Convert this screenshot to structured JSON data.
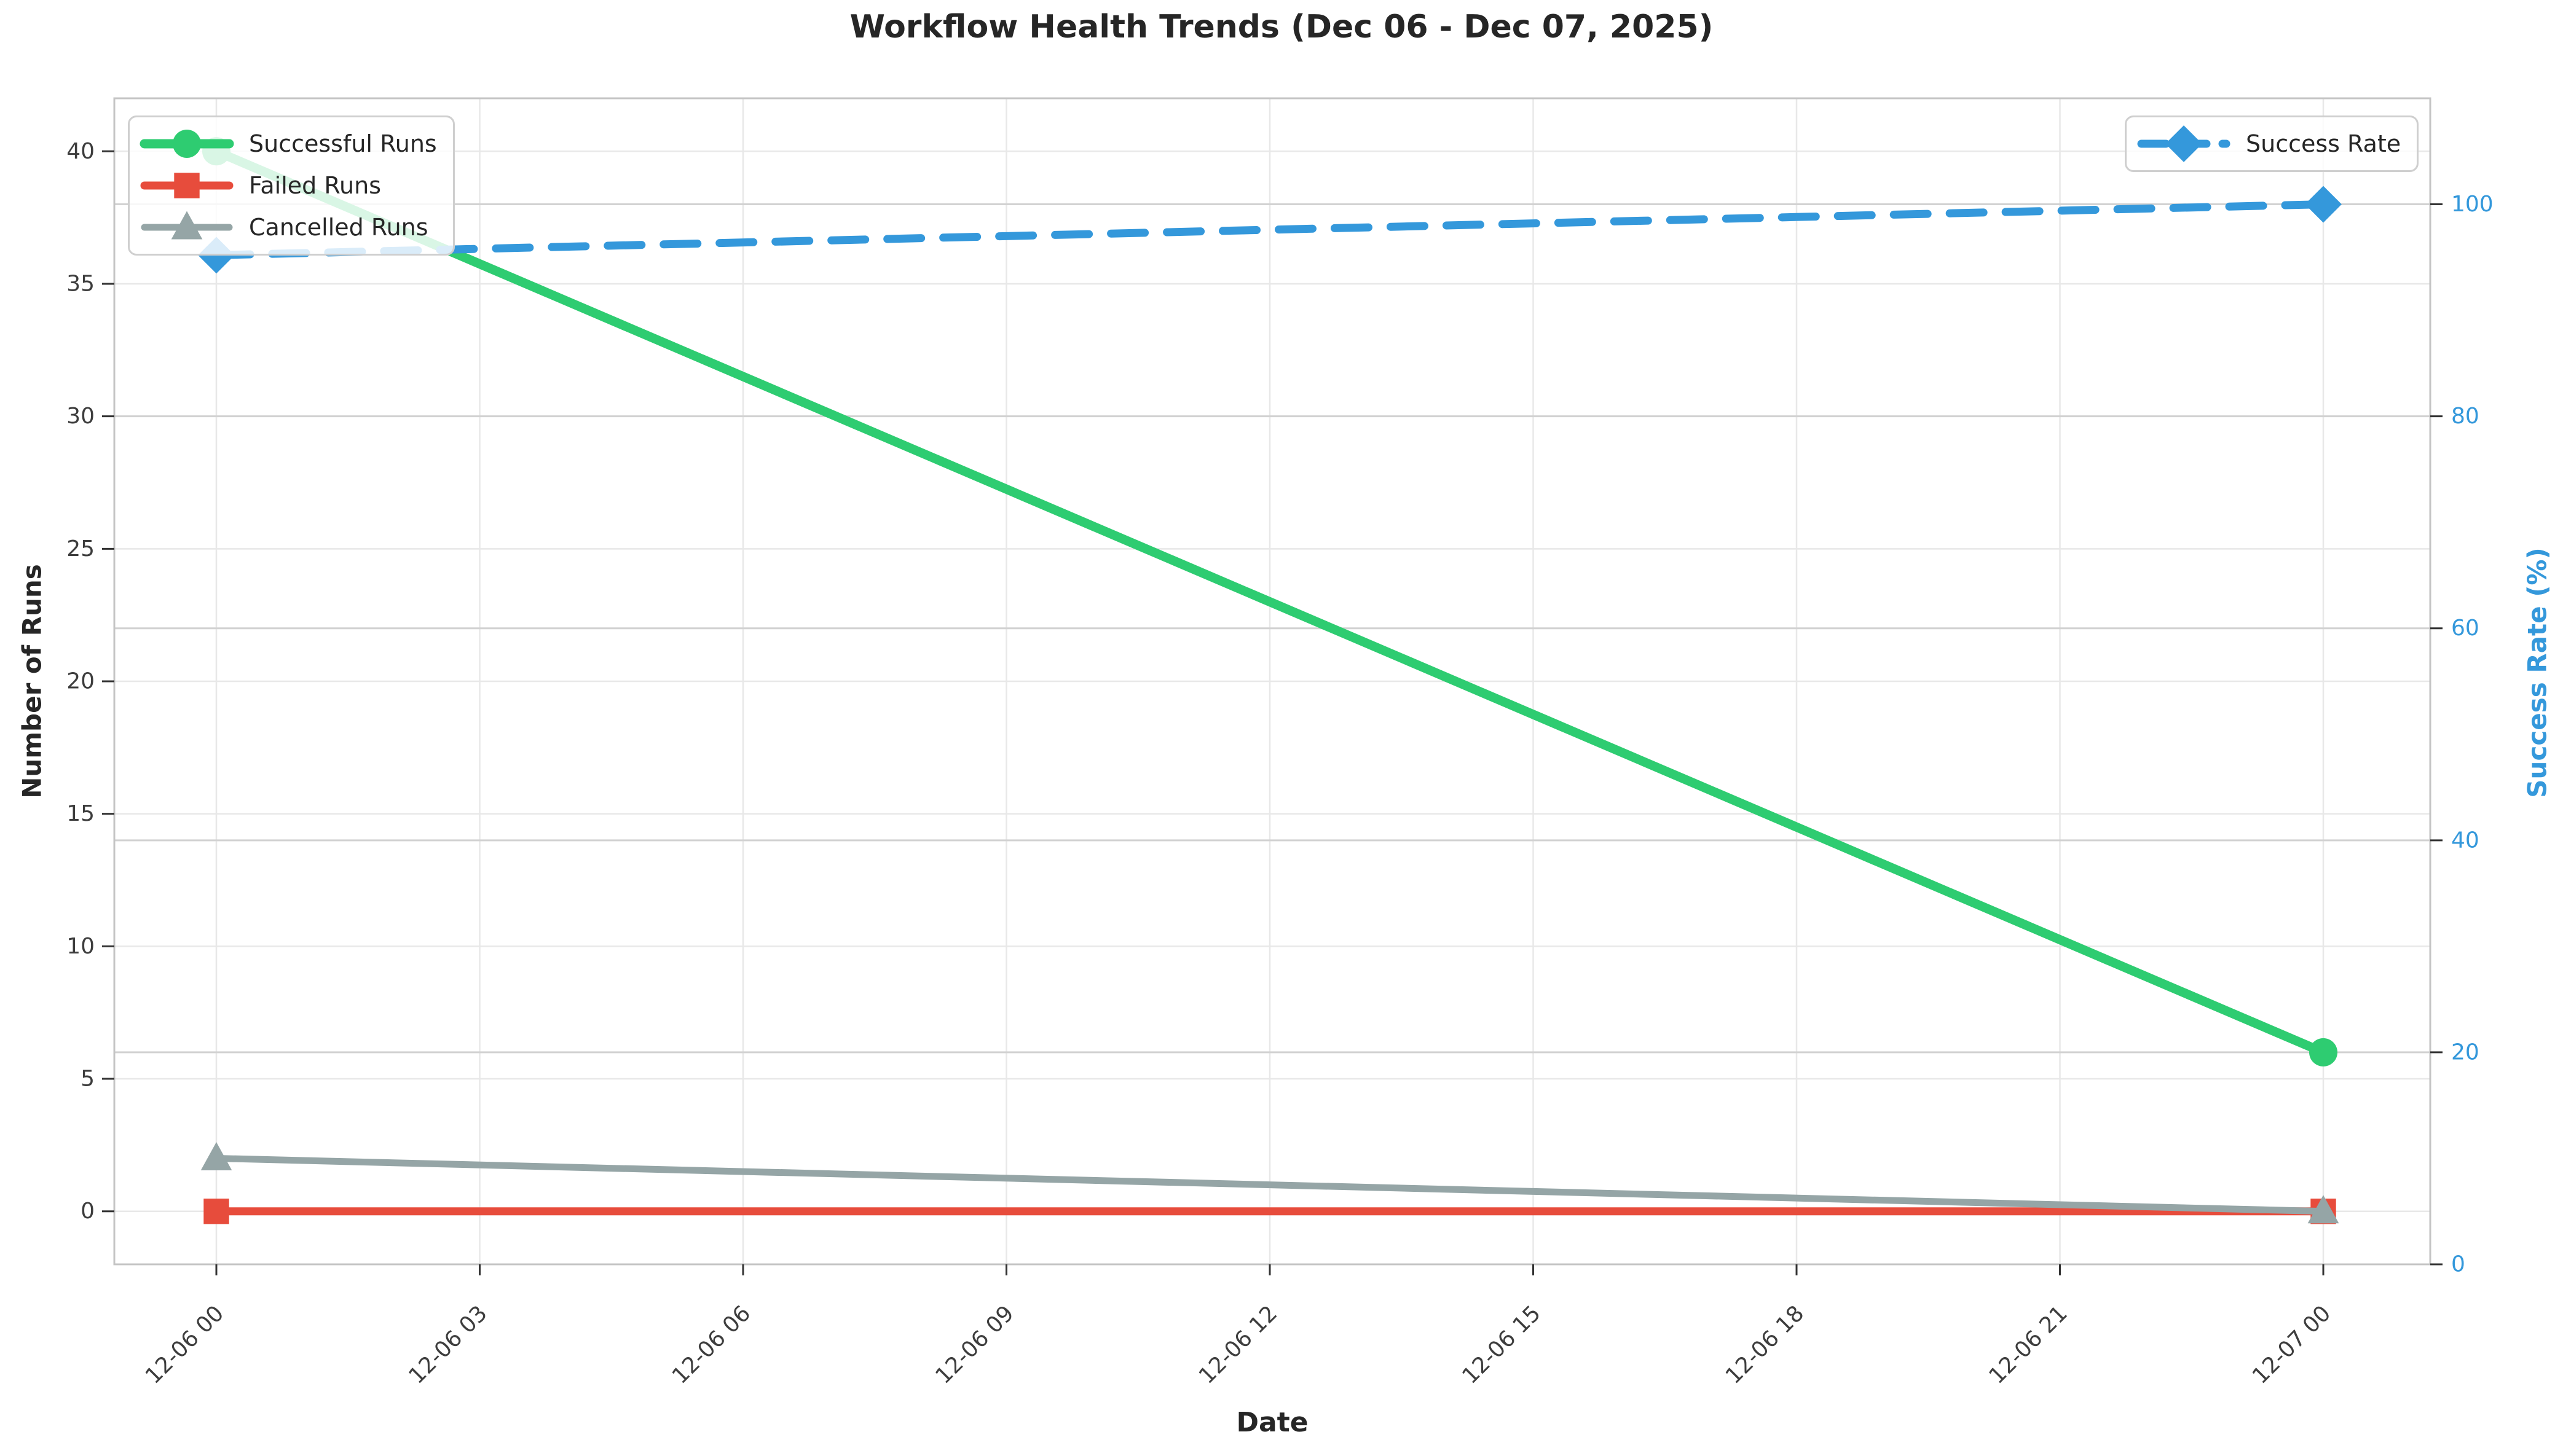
{
  "chart_data": {
    "type": "line",
    "title": "Workflow Health Trends (Dec 06 - Dec 07, 2025)",
    "xlabel": "Date",
    "ylabel_left": "Number of Runs",
    "ylabel_right": "Success Rate (%)",
    "x_tick_labels": [
      "12-06 00",
      "12-06 03",
      "12-06 06",
      "12-06 09",
      "12-06 12",
      "12-06 15",
      "12-06 18",
      "12-06 21",
      "12-07 00"
    ],
    "left_axis": {
      "ticks": [
        0,
        5,
        10,
        15,
        20,
        25,
        30,
        35,
        40
      ],
      "range": [
        -2,
        42
      ]
    },
    "right_axis": {
      "ticks": [
        0,
        20,
        40,
        60,
        80,
        100
      ],
      "range": [
        0,
        110
      ],
      "color": "#3498db"
    },
    "grid": true,
    "legend_left_position": "upper left",
    "legend_right_position": "upper right",
    "series": [
      {
        "name": "Successful Runs",
        "axis": "left",
        "x": [
          "12-06 00",
          "12-07 00"
        ],
        "values": [
          40,
          6
        ],
        "color": "#2ecc71",
        "marker": "circle",
        "line_style": "solid",
        "line_width": 15
      },
      {
        "name": "Failed Runs",
        "axis": "left",
        "x": [
          "12-06 00",
          "12-07 00"
        ],
        "values": [
          0,
          0
        ],
        "color": "#e74c3c",
        "marker": "square",
        "line_style": "solid",
        "line_width": 13
      },
      {
        "name": "Cancelled Runs",
        "axis": "left",
        "x": [
          "12-06 00",
          "12-07 00"
        ],
        "values": [
          2,
          0
        ],
        "color": "#95a5a6",
        "marker": "triangle",
        "line_style": "solid",
        "line_width": 11
      },
      {
        "name": "Success Rate",
        "axis": "right",
        "x": [
          "12-06 00",
          "12-07 00"
        ],
        "values": [
          95.2,
          100
        ],
        "color": "#3498db",
        "marker": "diamond",
        "line_style": "dashed",
        "line_width": 13
      }
    ],
    "legend_left": {
      "items": [
        "Successful Runs",
        "Failed Runs",
        "Cancelled Runs"
      ]
    },
    "legend_right": {
      "items": [
        "Success Rate"
      ]
    },
    "colors": {
      "background": "#ffffff",
      "grid_light": "#e8e8e8",
      "grid_right": "#d2d2d2",
      "spine": "#c4c4c4",
      "tick_mark": "#333333",
      "tick_label": "#3d3d3d",
      "right_tick_label": "#3498db",
      "text": "#262626"
    }
  }
}
